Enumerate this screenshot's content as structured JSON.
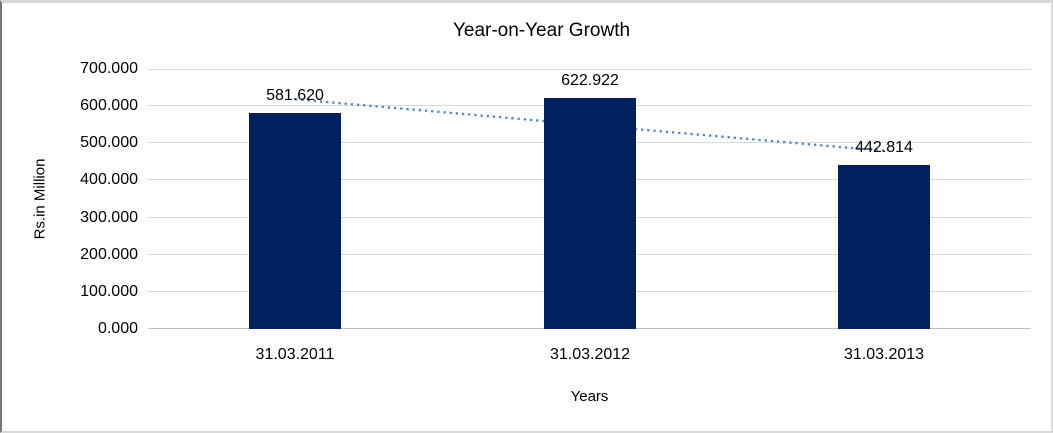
{
  "chart_data": {
    "type": "bar",
    "title": "Year-on-Year Growth",
    "categories": [
      "31.03.2011",
      "31.03.2012",
      "31.03.2013"
    ],
    "values": [
      581.62,
      622.922,
      442.814
    ],
    "data_labels": [
      "581.620",
      "622.922",
      "442.814"
    ],
    "xlabel": "Years",
    "ylabel": "Rs.in Million",
    "ylim": [
      0,
      700
    ],
    "ytick_interval": 100,
    "ytick_labels": [
      "0.000",
      "100.000",
      "200.000",
      "300.000",
      "400.000",
      "500.000",
      "600.000",
      "700.000"
    ],
    "grid": true,
    "legend": "none",
    "trendline": {
      "type": "linear",
      "style": "dotted"
    },
    "colors": {
      "bar": "#002060",
      "trendline": "#4f86c6",
      "gridline": "#d9d9d9",
      "axis_line": "#bfbfbf",
      "text": "#000000",
      "background": "#ffffff"
    }
  }
}
